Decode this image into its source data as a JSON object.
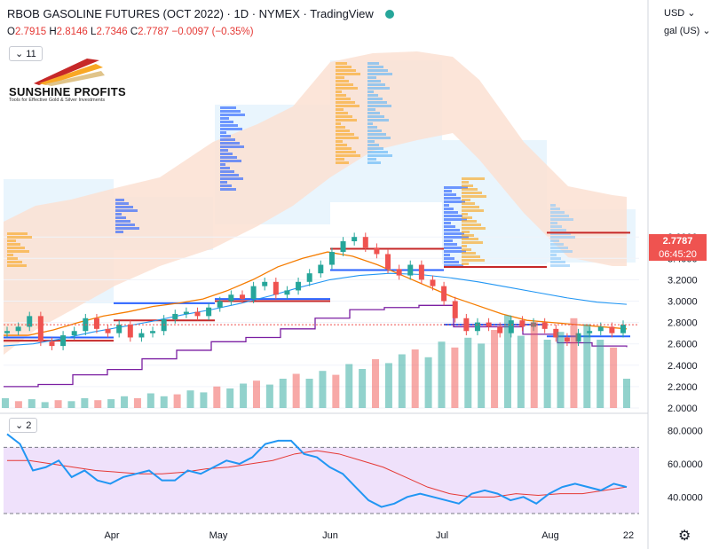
{
  "header": {
    "title": "RBOB GASOLINE FUTURES (OCT 2022) · 1D · NYMEX · TradingView",
    "ohlc": {
      "o_label": "O",
      "o": "2.7915",
      "h_label": "H",
      "h": "2.8146",
      "l_label": "L",
      "l": "2.7346",
      "c_label": "C",
      "c": "2.7787",
      "change": "−0.0097 (−0.35%)"
    },
    "collapse_count": "11",
    "osc_count": "2",
    "currency": "USD",
    "unit": "gal (US)"
  },
  "logo": {
    "name": "SUNSHINE PROFITS",
    "tagline": "Tools for Effective Gold & Silver Investments"
  },
  "price_badge": {
    "value": "2.7787",
    "countdown": "06:45:20"
  },
  "colors": {
    "up": "#26a69a",
    "down": "#ef5350",
    "ma_fast": "#f57c00",
    "ma_slow": "#2196f3",
    "trail": "#7b1fa2",
    "rsi": "#2196f3",
    "rsi_ma": "#e53935",
    "band_fill": "#fbe1d2",
    "rsi_fill": "#efe1fb"
  },
  "chart_data": [
    {
      "type": "candlestick",
      "y_axis_labels": [
        "3.6000",
        "3.4000",
        "3.2000",
        "3.0000",
        "2.8000",
        "2.6000",
        "2.4000",
        "2.2000",
        "2.0000"
      ],
      "x_axis_labels": [
        "Apr",
        "May",
        "Jun",
        "Jul",
        "Aug",
        "22"
      ],
      "ylim": [
        2.0,
        3.72
      ],
      "close_path": [
        2.72,
        2.76,
        2.86,
        2.62,
        2.58,
        2.68,
        2.72,
        2.84,
        2.74,
        2.7,
        2.78,
        2.66,
        2.7,
        2.72,
        2.83,
        2.88,
        2.9,
        2.86,
        2.94,
        3.0,
        3.06,
        3.02,
        3.14,
        3.18,
        3.06,
        3.1,
        3.18,
        3.26,
        3.34,
        3.46,
        3.56,
        3.6,
        3.5,
        3.44,
        3.3,
        3.24,
        3.34,
        3.2,
        3.14,
        3.0,
        2.84,
        2.72,
        2.8,
        2.76,
        2.7,
        2.82,
        2.76,
        2.8,
        2.74,
        2.66,
        2.62,
        2.7,
        2.72,
        2.76,
        2.7,
        2.78
      ],
      "series": [
        {
          "name": "",
          "values": [
            2.68,
            2.68,
            2.73,
            2.8,
            2.86,
            2.9,
            2.95,
            2.98,
            3.02,
            3.1,
            3.2,
            3.32,
            3.4,
            3.46,
            3.42,
            3.34,
            3.24,
            3.14,
            3.04,
            2.96,
            2.88,
            2.82,
            2.8,
            2.78,
            2.76,
            2.74
          ]
        },
        {
          "name": "",
          "values": [
            2.58,
            2.6,
            2.65,
            2.71,
            2.76,
            2.81,
            2.87,
            2.92,
            2.98,
            3.05,
            3.13,
            3.2,
            3.24,
            3.26,
            3.25,
            3.22,
            3.18,
            3.13,
            3.08,
            3.03,
            2.99,
            2.97
          ]
        },
        {
          "name": "",
          "values": [
            2.2,
            2.22,
            2.31,
            2.36,
            2.46,
            2.54,
            2.62,
            2.66,
            2.74,
            2.84,
            2.92,
            2.94,
            2.96,
            2.76,
            2.76,
            2.69,
            2.61,
            2.58,
            2.57
          ]
        }
      ],
      "levels": [
        2.63,
        2.66,
        2.67,
        2.78,
        2.82,
        2.98,
        3.0,
        3.02,
        3.29,
        3.32,
        3.49,
        3.64
      ],
      "volume": [
        0.1,
        0.07,
        0.09,
        0.06,
        0.08,
        0.07,
        0.1,
        0.08,
        0.09,
        0.12,
        0.1,
        0.15,
        0.12,
        0.14,
        0.18,
        0.16,
        0.22,
        0.2,
        0.25,
        0.28,
        0.24,
        0.3,
        0.35,
        0.3,
        0.38,
        0.34,
        0.45,
        0.4,
        0.5,
        0.46,
        0.55,
        0.6,
        0.52,
        0.68,
        0.62,
        0.72,
        0.66,
        0.8,
        0.95,
        0.74,
        0.88,
        0.7,
        0.78,
        0.92,
        0.86,
        0.7,
        0.62,
        0.3
      ]
    },
    {
      "type": "line",
      "y_axis_labels": [
        "80.0000",
        "60.0000",
        "40.0000"
      ],
      "ylim": [
        30,
        80
      ],
      "bands": [
        30,
        70
      ],
      "series": [
        {
          "name": "",
          "values": [
            78,
            72,
            56,
            58,
            62,
            52,
            56,
            50,
            48,
            52,
            54,
            56,
            50,
            50,
            56,
            54,
            58,
            62,
            60,
            64,
            72,
            74,
            74,
            66,
            64,
            58,
            54,
            46,
            38,
            34,
            36,
            40,
            42,
            40,
            38,
            36,
            42,
            44,
            42,
            38,
            40,
            36,
            42,
            46,
            48,
            46,
            44,
            48,
            46
          ]
        },
        {
          "name": "",
          "values": [
            62,
            62,
            60,
            58,
            56,
            55,
            54,
            54,
            55,
            57,
            58,
            60,
            62,
            66,
            68,
            66,
            62,
            58,
            52,
            46,
            42,
            40,
            40,
            42,
            41,
            42,
            42,
            44,
            46
          ]
        }
      ]
    }
  ]
}
